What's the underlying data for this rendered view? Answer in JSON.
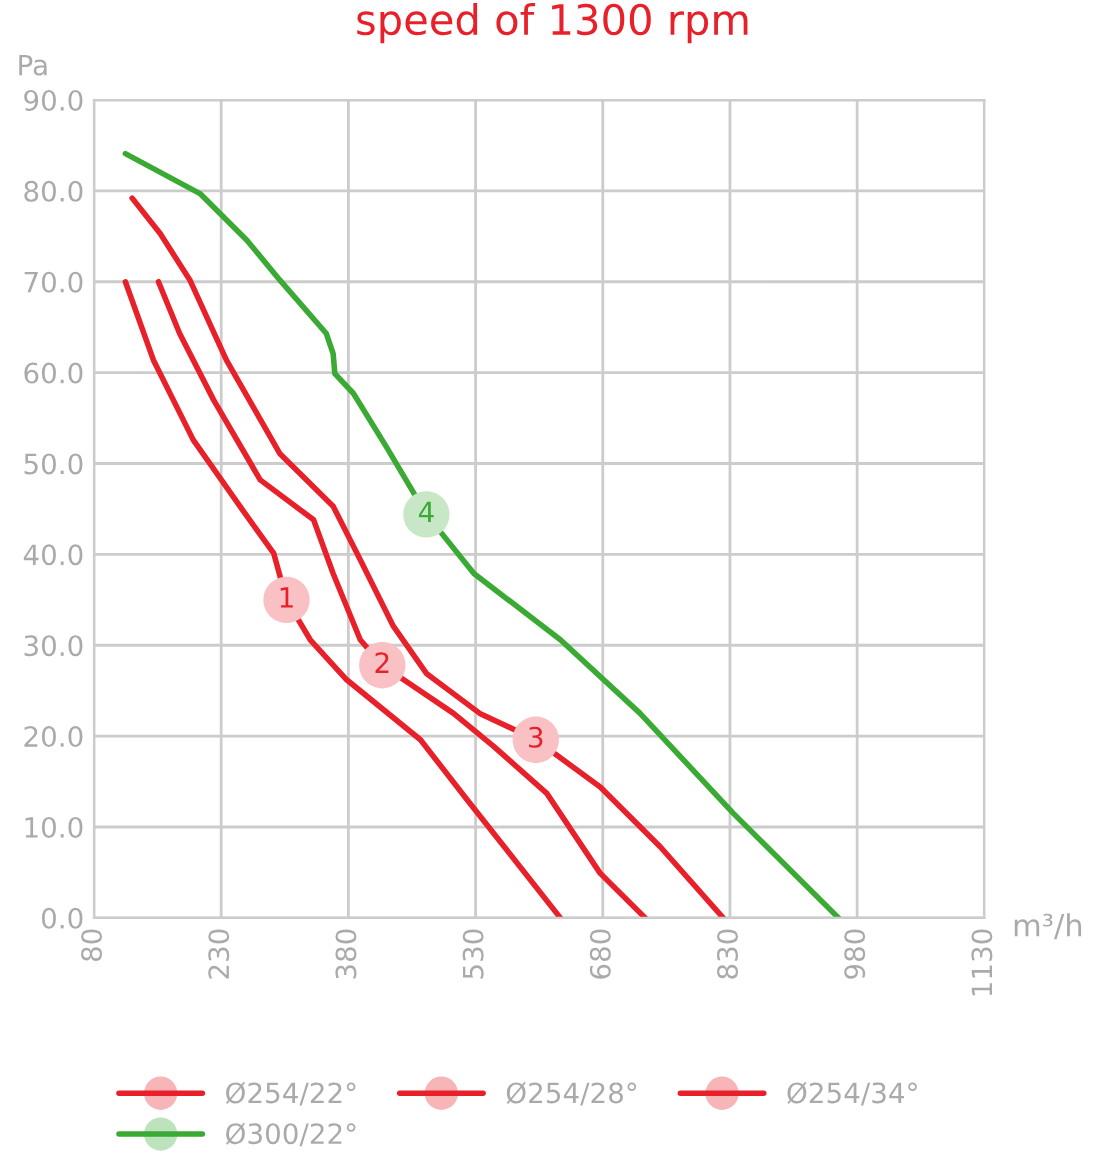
{
  "chart_data": {
    "type": "line",
    "title": "speed of 1300 rpm",
    "xlabel": "m³/h",
    "ylabel": "Pa",
    "series": [
      {
        "name": "Ø254/22°",
        "color": "#e8202a",
        "x": [
          117,
          150,
          197,
          252,
          292,
          307,
          335,
          378,
          465,
          520,
          630
        ],
        "values": [
          70,
          61.4,
          52.6,
          45.3,
          40.1,
          35,
          30.6,
          26.2,
          19.6,
          13,
          0
        ]
      },
      {
        "name": "Ø254/28°",
        "color": "#e8202a",
        "x": [
          156,
          181,
          221,
          276,
          339,
          362,
          394,
          420,
          504,
          551,
          614,
          677,
          730
        ],
        "values": [
          70,
          64.3,
          57,
          48.2,
          43.8,
          37.9,
          30.6,
          27.8,
          22.5,
          18.9,
          13.7,
          4.9,
          0
        ]
      },
      {
        "name": "Ø254/34°",
        "color": "#e8202a",
        "x": [
          125,
          158,
          193,
          236,
          299,
          362,
          394,
          433,
          472,
          535,
          601,
          677,
          748,
          822
        ],
        "values": [
          79.2,
          75.3,
          70.2,
          61.4,
          51.1,
          45.3,
          39.4,
          32.1,
          26.9,
          22.5,
          19.6,
          14.4,
          7.8,
          0
        ]
      },
      {
        "name": "Ø300/22°",
        "color": "#3aaa35",
        "x": [
          117,
          205,
          260,
          299,
          354,
          362,
          364,
          386,
          425,
          472,
          528,
          630,
          724,
          834,
          958
        ],
        "values": [
          84.1,
          79.7,
          74.6,
          70.2,
          64.3,
          62.1,
          59.9,
          57.7,
          51.8,
          44.4,
          37.9,
          30.6,
          22.5,
          11.5,
          0
        ]
      }
    ],
    "annotations": [
      {
        "text": "1",
        "x": 307,
        "y": 35
      },
      {
        "text": "2",
        "x": 420,
        "y": 27.8
      },
      {
        "text": "3",
        "x": 601,
        "y": 19.6
      },
      {
        "text": "4",
        "x": 472,
        "y": 44.4
      }
    ],
    "xlim": [
      80,
      1130
    ],
    "xticks": [
      80,
      230,
      380,
      530,
      680,
      830,
      980,
      1130
    ],
    "ylim": [
      0,
      90
    ],
    "yticks": [
      {
        "value": 0,
        "label": "0.0"
      },
      {
        "value": 10,
        "label": "10.0"
      },
      {
        "value": 20,
        "label": "20.0"
      },
      {
        "value": 30,
        "label": "30.0"
      },
      {
        "value": 40,
        "label": "40.0"
      },
      {
        "value": 50,
        "label": "50.0"
      },
      {
        "value": 60,
        "label": "60.0"
      },
      {
        "value": 70,
        "label": "70.0"
      },
      {
        "value": 80,
        "label": "80.0"
      },
      {
        "value": 90,
        "label": "90.0"
      }
    ],
    "grid": true,
    "legend": "bottom",
    "marker": "none",
    "line_style": "solid"
  }
}
